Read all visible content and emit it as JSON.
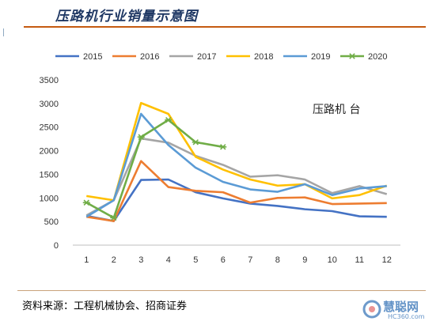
{
  "header": {
    "title": "压路机行业销量示意图"
  },
  "footer": {
    "source": "资料来源：工程机械协会、招商证券"
  },
  "watermark": {
    "text": "慧聪网",
    "sub": "HC360.com"
  },
  "chart_data": {
    "type": "line",
    "title": "",
    "xlabel": "",
    "ylabel": "",
    "annotation": "压路机 台",
    "x": [
      1,
      2,
      3,
      4,
      5,
      6,
      7,
      8,
      9,
      10,
      11,
      12
    ],
    "ylim": [
      0,
      3500
    ],
    "yticks": [
      0,
      500,
      1000,
      1500,
      2000,
      2500,
      3000,
      3500
    ],
    "grid": false,
    "legend": "top",
    "series": [
      {
        "name": "2015",
        "color": "#4472c4",
        "marker": "none",
        "values": [
          620,
          510,
          1380,
          1390,
          1120,
          990,
          880,
          830,
          760,
          720,
          610,
          600
        ]
      },
      {
        "name": "2016",
        "color": "#ed7d31",
        "marker": "none",
        "values": [
          600,
          510,
          1780,
          1230,
          1150,
          1120,
          900,
          1000,
          1010,
          870,
          880,
          890
        ]
      },
      {
        "name": "2017",
        "color": "#a5a5a5",
        "marker": "none",
        "values": [
          630,
          950,
          2260,
          2170,
          1890,
          1700,
          1450,
          1480,
          1390,
          1100,
          1250,
          1080
        ]
      },
      {
        "name": "2018",
        "color": "#ffc000",
        "marker": "none",
        "values": [
          1040,
          950,
          3010,
          2780,
          1870,
          1600,
          1390,
          1260,
          1290,
          990,
          1060,
          1260
        ]
      },
      {
        "name": "2019",
        "color": "#5b9bd5",
        "marker": "none",
        "values": [
          600,
          950,
          2780,
          2120,
          1640,
          1340,
          1180,
          1130,
          1290,
          1060,
          1200,
          1250
        ]
      },
      {
        "name": "2020",
        "color": "#70ad47",
        "marker": "asterisk",
        "values": [
          900,
          580,
          2290,
          2650,
          2180,
          2080,
          null,
          null,
          null,
          null,
          null,
          null
        ]
      }
    ]
  }
}
